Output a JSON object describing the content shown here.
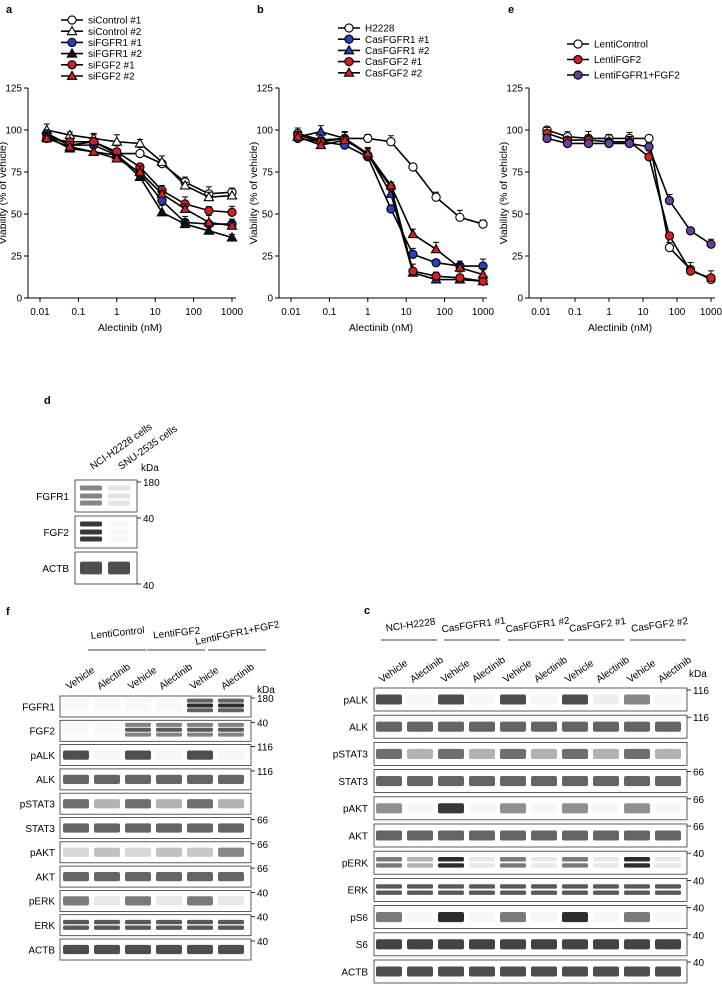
{
  "colors": {
    "white": "#ffffff",
    "blue": "#2b3fc4",
    "black": "#111111",
    "red": "#d42020",
    "purple": "#6a3fa0"
  },
  "panels": {
    "a": {
      "letter": "a"
    },
    "b": {
      "letter": "b"
    },
    "e": {
      "letter": "e"
    },
    "d": {
      "letter": "d"
    },
    "f": {
      "letter": "f"
    },
    "c": {
      "letter": "c"
    }
  },
  "chart_data": [
    {
      "id": "a",
      "type": "line",
      "xscale": "log",
      "title": "",
      "xlabel": "Alectinib (nM)",
      "ylabel": "Viability (% of vehicle)",
      "ylim": [
        0,
        125
      ],
      "yticks": [
        "0",
        "25",
        "50",
        "75",
        "100",
        "125"
      ],
      "xticks": [
        "0.01",
        "0.1",
        "1",
        "10",
        "100",
        "1000"
      ],
      "legend": "top",
      "x": [
        0.015,
        0.06,
        0.25,
        1,
        4,
        15,
        60,
        250,
        1000
      ],
      "series": [
        {
          "name": "siControl #1",
          "marker": "circle",
          "fill": "white",
          "values": [
            98,
            91,
            93,
            86,
            86,
            80,
            69,
            62,
            63
          ]
        },
        {
          "name": "siControl #2",
          "marker": "triangle",
          "fill": "white",
          "values": [
            100,
            97,
            95,
            93,
            92,
            81,
            67,
            60,
            61
          ]
        },
        {
          "name": "siFGFR1 #1",
          "marker": "circle",
          "fill": "blue",
          "values": [
            97,
            91,
            91,
            85,
            74,
            58,
            45,
            44,
            44
          ]
        },
        {
          "name": "siFGFR1 #2",
          "marker": "triangle",
          "fill": "black",
          "values": [
            96,
            89,
            87,
            85,
            72,
            51,
            44,
            40,
            36
          ]
        },
        {
          "name": "siFGF2 #1",
          "marker": "circle",
          "fill": "red",
          "values": [
            95,
            93,
            93,
            87,
            78,
            64,
            56,
            52,
            51
          ]
        },
        {
          "name": "siFGF2 #2",
          "marker": "triangle",
          "fill": "red",
          "values": [
            95,
            90,
            87,
            83,
            75,
            62,
            53,
            45,
            43
          ]
        }
      ]
    },
    {
      "id": "b",
      "type": "line",
      "xscale": "log",
      "title": "",
      "xlabel": "Alectinib (nM)",
      "ylabel": "Viability (% of vehicle)",
      "ylim": [
        0,
        125
      ],
      "yticks": [
        "0",
        "25",
        "50",
        "75",
        "100",
        "125"
      ],
      "xticks": [
        "0.01",
        "0.1",
        "1",
        "10",
        "100",
        "1000"
      ],
      "legend": "top",
      "x": [
        0.015,
        0.06,
        0.25,
        1,
        4,
        15,
        60,
        250,
        1000
      ],
      "series": [
        {
          "name": "H2228",
          "marker": "circle",
          "fill": "white",
          "values": [
            98,
            94,
            95,
            95,
            93,
            78,
            60,
            48,
            44
          ]
        },
        {
          "name": "CasFGFR1 #1",
          "marker": "circle",
          "fill": "blue",
          "values": [
            95,
            93,
            91,
            84,
            53,
            26,
            21,
            19,
            19
          ]
        },
        {
          "name": "CasFGFR1 #2",
          "marker": "triangle",
          "fill": "blue",
          "values": [
            96,
            99,
            95,
            86,
            62,
            15,
            11,
            11,
            10
          ]
        },
        {
          "name": "CasFGF2 #1",
          "marker": "circle",
          "fill": "red",
          "values": [
            97,
            93,
            95,
            85,
            66,
            16,
            13,
            12,
            10
          ]
        },
        {
          "name": "CasFGF2 #2",
          "marker": "triangle",
          "fill": "red",
          "values": [
            96,
            91,
            94,
            86,
            67,
            38,
            29,
            18,
            14
          ]
        }
      ]
    },
    {
      "id": "e",
      "type": "line",
      "xscale": "log",
      "title": "",
      "xlabel": "Alectinib (nM)",
      "ylabel": "Viability (% of vehicle)",
      "ylim": [
        0,
        125
      ],
      "yticks": [
        "0",
        "25",
        "50",
        "75",
        "100",
        "125"
      ],
      "xticks": [
        "0.01",
        "0.1",
        "1",
        "10",
        "100",
        "1000"
      ],
      "legend": "top",
      "x": [
        0.015,
        0.06,
        0.25,
        1,
        4,
        15,
        60,
        250,
        1000
      ],
      "series": [
        {
          "name": "LentiControl",
          "marker": "circle",
          "fill": "white",
          "values": [
            100,
            96,
            95,
            95,
            95,
            95,
            30,
            17,
            11
          ]
        },
        {
          "name": "LentiFGF2",
          "marker": "circle",
          "fill": "red",
          "values": [
            98,
            94,
            94,
            93,
            93,
            84,
            37,
            16,
            12
          ]
        },
        {
          "name": "LentiFGFR1+FGF2",
          "marker": "circle",
          "fill": "purple",
          "values": [
            95,
            92,
            92,
            92,
            92,
            90,
            58,
            40,
            32
          ]
        }
      ]
    }
  ],
  "blot_d": {
    "columns": [
      "NCI-H2228 cells",
      "SNU-2535 cells"
    ],
    "kda_header": "kDa",
    "rows": [
      {
        "label": "FGFR1",
        "kda": "180"
      },
      {
        "label": "FGF2",
        "kda": "40"
      },
      {
        "label": "ACTB",
        "kda": "40"
      }
    ]
  },
  "blot_f": {
    "groups": [
      "LentiControl",
      "LentiFGF2",
      "LentiFGFR1+FGF2"
    ],
    "lanes": [
      "Vehicle",
      "Alectinib",
      "Vehicle",
      "Alectinib",
      "Vehicle",
      "Alectinib"
    ],
    "kda_header": "kDa",
    "rows": [
      {
        "label": "FGFR1",
        "kda": "180"
      },
      {
        "label": "FGF2",
        "kda": "40"
      },
      {
        "label": "pALK",
        "kda": "116"
      },
      {
        "label": "ALK",
        "kda": "116"
      },
      {
        "label": "pSTAT3",
        "kda": ""
      },
      {
        "label": "STAT3",
        "kda": "66"
      },
      {
        "label": "pAKT",
        "kda": "66"
      },
      {
        "label": "AKT",
        "kda": "66"
      },
      {
        "label": "pERK",
        "kda": "40"
      },
      {
        "label": "ERK",
        "kda": "40"
      },
      {
        "label": "ACTB",
        "kda": "40"
      }
    ]
  },
  "blot_c": {
    "groups": [
      "NCI-H2228",
      "CasFGFR1 #1",
      "CasFGFR1 #2",
      "CasFGF2 #1",
      "CasFGF2 #2"
    ],
    "lanes": [
      "Vehicle",
      "Alectinib",
      "Vehicle",
      "Alectinib",
      "Vehicle",
      "Alectinib",
      "Vehicle",
      "Alectinib",
      "Vehicle",
      "Alectinib"
    ],
    "kda_header": "kDa",
    "rows": [
      {
        "label": "pALK",
        "kda": "116"
      },
      {
        "label": "ALK",
        "kda": "116"
      },
      {
        "label": "pSTAT3",
        "kda": ""
      },
      {
        "label": "STAT3",
        "kda": "66"
      },
      {
        "label": "pAKT",
        "kda": "66"
      },
      {
        "label": "AKT",
        "kda": "66"
      },
      {
        "label": "pERK",
        "kda": "40"
      },
      {
        "label": "ERK",
        "kda": "40"
      },
      {
        "label": "pS6",
        "kda": "40"
      },
      {
        "label": "S6",
        "kda": "40"
      },
      {
        "label": "ACTB",
        "kda": "40"
      }
    ]
  }
}
